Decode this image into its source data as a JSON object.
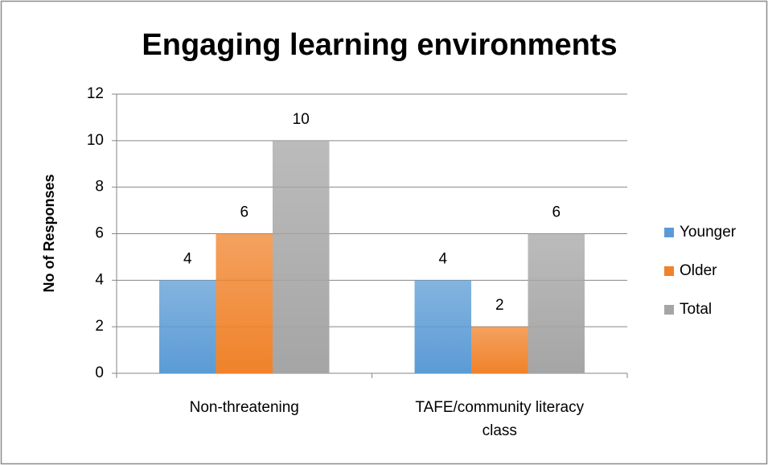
{
  "chart_data": {
    "type": "bar",
    "title": "Engaging learning environments",
    "y_label": "No of Responses",
    "categories": [
      "Non-threatening",
      "TAFE/community literacy class"
    ],
    "series": [
      {
        "name": "Younger",
        "color": "#5b9bd5",
        "values": [
          4,
          4
        ]
      },
      {
        "name": "Older",
        "color": "#f0822a",
        "values": [
          6,
          2
        ]
      },
      {
        "name": "Total",
        "color": "#a5a5a5",
        "values": [
          10,
          6
        ]
      }
    ],
    "ylim": [
      0,
      12
    ],
    "yticks": [
      0,
      2,
      4,
      6,
      8,
      10,
      12
    ],
    "grid": true,
    "legend": "right"
  }
}
